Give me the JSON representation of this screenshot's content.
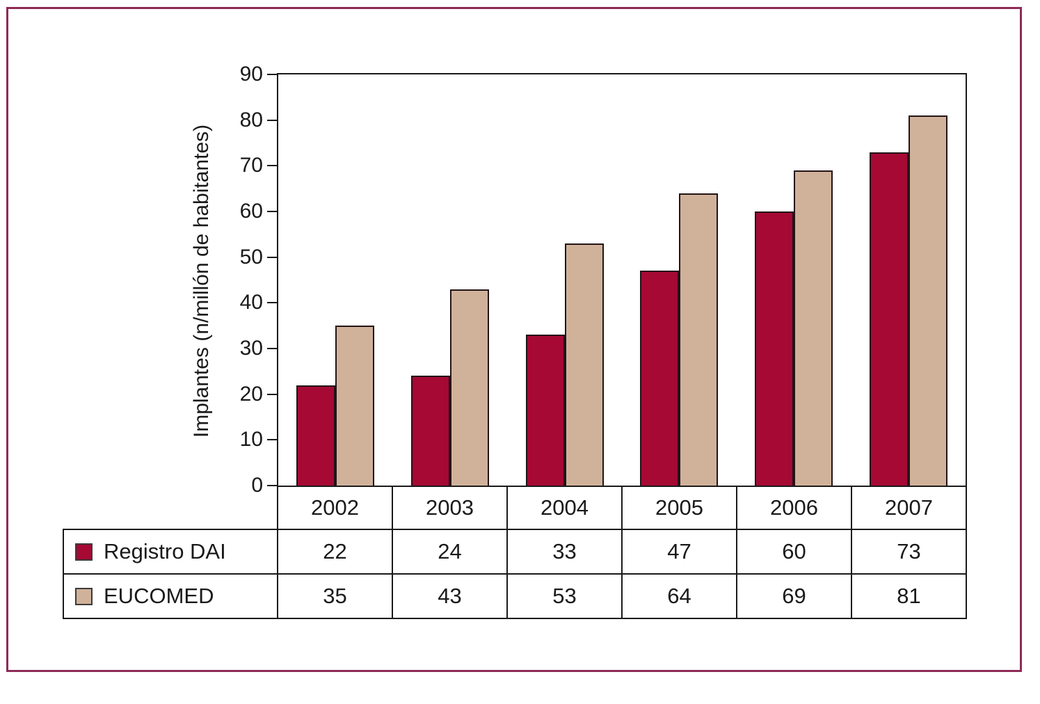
{
  "figure": {
    "frame_color": "#8e2b57",
    "background": "#ffffff",
    "axis_color": "#1a1a1a"
  },
  "chart_data": {
    "type": "bar",
    "title": "",
    "categories": [
      "2002",
      "2003",
      "2004",
      "2005",
      "2006",
      "2007"
    ],
    "series": [
      {
        "name": "Registro DAI",
        "color": "#a50934",
        "values": [
          22,
          24,
          33,
          47,
          60,
          73
        ]
      },
      {
        "name": "EUCOMED",
        "color": "#d0b29a",
        "values": [
          35,
          43,
          53,
          64,
          69,
          81
        ]
      }
    ],
    "xlabel": "",
    "ylabel": "Implantes (n/millón de habitantes)",
    "ylim": [
      0,
      90
    ],
    "yticks": [
      0,
      10,
      20,
      30,
      40,
      50,
      60,
      70,
      80,
      90
    ],
    "grid": false,
    "legend_position": "table-below",
    "bar_outline_color": "#231418"
  }
}
